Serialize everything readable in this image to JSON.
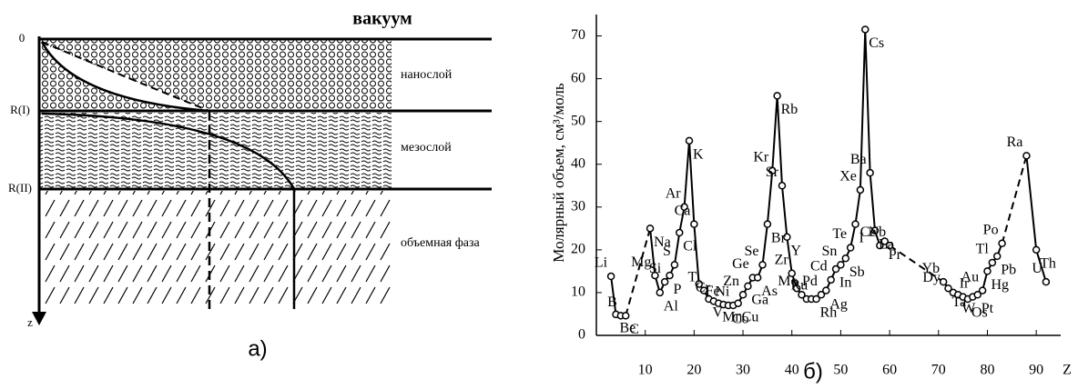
{
  "diagram": {
    "title": "вакуум",
    "surface_label": "0",
    "boundary_1": "R(I)",
    "boundary_2": "R(II)",
    "axis_label": "z",
    "layers": [
      "нанослой",
      "мезослой",
      "объемная фаза"
    ],
    "caption": "а)"
  },
  "chart_data": {
    "type": "line",
    "caption": "б)",
    "y_label": "Молярный объем, см³/моль",
    "x_label": "Z",
    "color": "#000000",
    "x": [
      3,
      4,
      5,
      6,
      8,
      11,
      12,
      13,
      14,
      15,
      16,
      17,
      18,
      19,
      20,
      21,
      22,
      23,
      24,
      25,
      26,
      27,
      28,
      29,
      30,
      31,
      32,
      33,
      34,
      35,
      36,
      37,
      38,
      39,
      40,
      41,
      42,
      43,
      44,
      45,
      46,
      47,
      48,
      49,
      50,
      51,
      52,
      53,
      54,
      55,
      56,
      57,
      58,
      59,
      60,
      66,
      71,
      72,
      73,
      74,
      75,
      76,
      77,
      78,
      79,
      80,
      81,
      82,
      83,
      86,
      88,
      90,
      92
    ],
    "values": [
      13.8,
      4.9,
      4.6,
      4.6,
      null,
      25,
      14,
      10,
      12.5,
      14,
      16.5,
      24,
      30,
      45.5,
      26,
      12,
      10.5,
      8.5,
      8,
      7.5,
      7.2,
      7,
      7,
      7.5,
      9.5,
      11.5,
      13.5,
      13.5,
      16.5,
      26,
      38.5,
      56,
      35,
      23,
      14.5,
      11,
      9.5,
      8.5,
      8.5,
      8.5,
      9.5,
      10.5,
      13,
      15.5,
      16.5,
      18,
      20.5,
      26,
      34,
      71.5,
      38,
      24.5,
      21,
      22,
      21,
      null,
      12.5,
      11,
      10,
      9.5,
      9,
      8.5,
      9,
      9.5,
      10.5,
      15,
      17,
      18.5,
      21.5,
      null,
      42,
      20,
      12.5
    ],
    "point_labels": [
      "Li",
      "Be",
      "B",
      "C",
      null,
      "Na",
      "Mg",
      "Al",
      "Si",
      "P",
      "S",
      "Cl",
      "Ar",
      "K",
      "Ca",
      null,
      "Ti",
      "V",
      "Cr",
      "Mn",
      "Fe",
      "Co",
      "Ni",
      "Cu",
      "Zn",
      "Ga",
      "Ge",
      "As",
      "Se",
      "Br",
      "Kr",
      "Rb",
      "Sr",
      "Y",
      "Zr",
      null,
      "Mo",
      null,
      "Ru",
      "Rh",
      "Pd",
      "Ag",
      "Cd",
      "In",
      "Sn",
      "Sb",
      "Te",
      "I",
      "Xe",
      "Cs",
      "Ba",
      "La",
      "Ce",
      "Pr",
      "Nb",
      "Dy",
      "Yb",
      "Ta",
      null,
      "W",
      null,
      "Os",
      "Ir",
      "Pt",
      "Au",
      "Hg",
      "Tl",
      "Pb",
      "Po",
      null,
      "Ra",
      "Th",
      "U"
    ],
    "xlim": [
      0,
      95
    ],
    "ylim": [
      0,
      75
    ],
    "xticks": [
      10,
      20,
      30,
      40,
      50,
      60,
      70,
      80,
      90
    ],
    "yticks": [
      0,
      10,
      20,
      30,
      40,
      50,
      60,
      70
    ]
  }
}
